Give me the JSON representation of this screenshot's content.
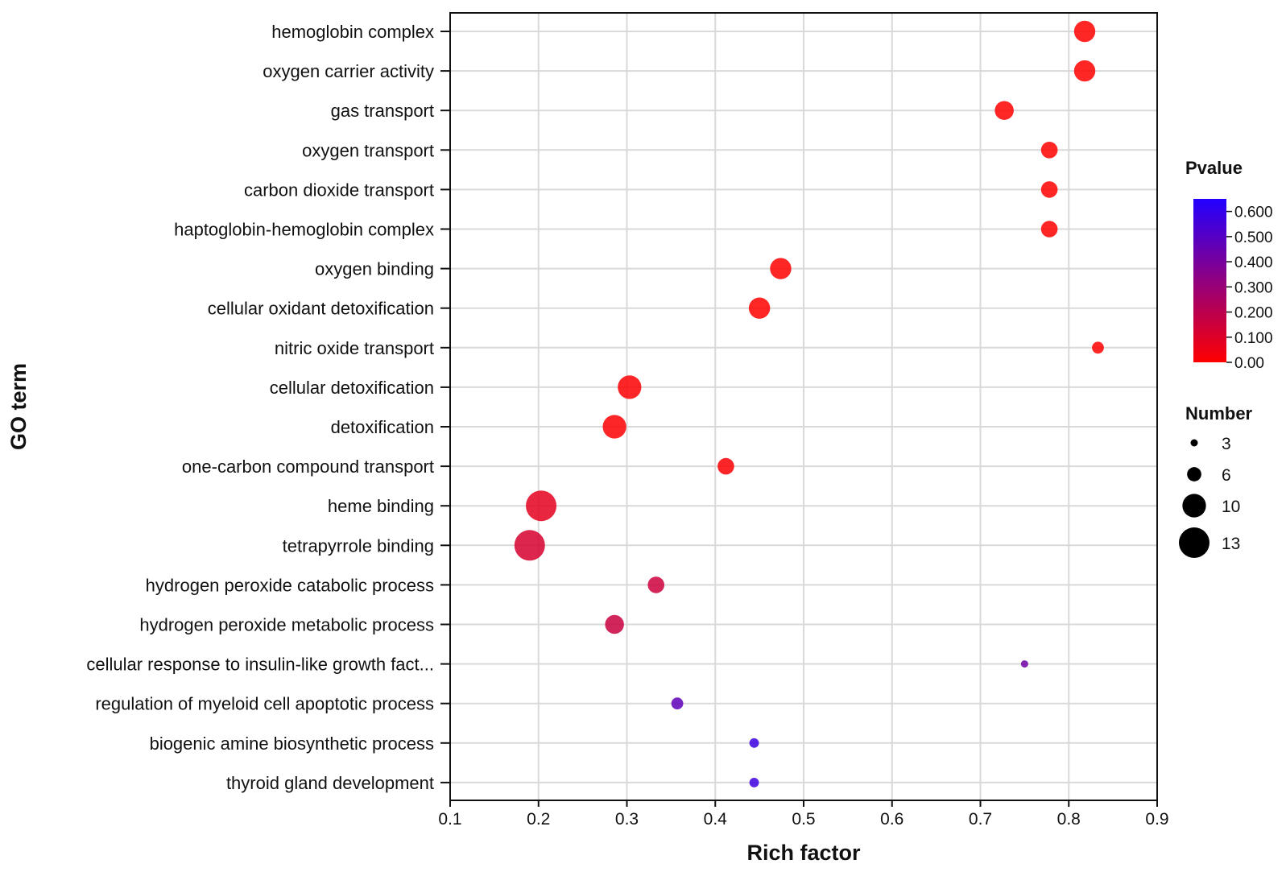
{
  "chart_data": {
    "type": "scatter",
    "subtype": "bubble",
    "xlabel": "Rich factor",
    "ylabel": "GO term",
    "xlim": [
      0.1,
      0.9
    ],
    "xticks": [
      "0.1",
      "0.2",
      "0.3",
      "0.4",
      "0.5",
      "0.6",
      "0.7",
      "0.8",
      "0.9"
    ],
    "grid": true,
    "terms": [
      {
        "label": "hemoglobin complex",
        "rich_factor": 0.818,
        "pvalue": 0.0,
        "number": 9
      },
      {
        "label": "oxygen carrier activity",
        "rich_factor": 0.818,
        "pvalue": 0.0,
        "number": 9
      },
      {
        "label": "gas transport",
        "rich_factor": 0.727,
        "pvalue": 0.0,
        "number": 8
      },
      {
        "label": "oxygen transport",
        "rich_factor": 0.778,
        "pvalue": 0.0,
        "number": 7
      },
      {
        "label": "carbon dioxide transport",
        "rich_factor": 0.778,
        "pvalue": 0.0,
        "number": 7
      },
      {
        "label": "haptoglobin-hemoglobin complex",
        "rich_factor": 0.778,
        "pvalue": 0.0,
        "number": 7
      },
      {
        "label": "oxygen binding",
        "rich_factor": 0.474,
        "pvalue": 0.0,
        "number": 9
      },
      {
        "label": "cellular oxidant detoxification",
        "rich_factor": 0.45,
        "pvalue": 0.0,
        "number": 9
      },
      {
        "label": "nitric oxide transport",
        "rich_factor": 0.833,
        "pvalue": 0.0,
        "number": 5
      },
      {
        "label": "cellular detoxification",
        "rich_factor": 0.303,
        "pvalue": 0.01,
        "number": 10
      },
      {
        "label": "detoxification",
        "rich_factor": 0.286,
        "pvalue": 0.01,
        "number": 10
      },
      {
        "label": "one-carbon compound transport",
        "rich_factor": 0.412,
        "pvalue": 0.01,
        "number": 7
      },
      {
        "label": "heme binding",
        "rich_factor": 0.203,
        "pvalue": 0.08,
        "number": 13
      },
      {
        "label": "tetrapyrrole binding",
        "rich_factor": 0.19,
        "pvalue": 0.12,
        "number": 13
      },
      {
        "label": "hydrogen peroxide catabolic process",
        "rich_factor": 0.333,
        "pvalue": 0.15,
        "number": 7
      },
      {
        "label": "hydrogen peroxide metabolic process",
        "rich_factor": 0.286,
        "pvalue": 0.16,
        "number": 8
      },
      {
        "label": "cellular response to insulin-like growth fact...",
        "rich_factor": 0.75,
        "pvalue": 0.42,
        "number": 3
      },
      {
        "label": "regulation of myeloid cell apoptotic process",
        "rich_factor": 0.357,
        "pvalue": 0.47,
        "number": 5
      },
      {
        "label": "biogenic amine biosynthetic process",
        "rich_factor": 0.444,
        "pvalue": 0.57,
        "number": 4
      },
      {
        "label": "thyroid gland development",
        "rich_factor": 0.444,
        "pvalue": 0.57,
        "number": 4
      }
    ],
    "color_legend": {
      "title": "Pvalue",
      "min": 0.0,
      "max": 0.65,
      "low_color": "#ff0000",
      "high_color": "#2200ff",
      "ticks": [
        {
          "value": 0.0,
          "label": "0.00"
        },
        {
          "value": 0.1,
          "label": "0.100"
        },
        {
          "value": 0.2,
          "label": "0.200"
        },
        {
          "value": 0.3,
          "label": "0.300"
        },
        {
          "value": 0.4,
          "label": "0.400"
        },
        {
          "value": 0.5,
          "label": "0.500"
        },
        {
          "value": 0.6,
          "label": "0.600"
        }
      ]
    },
    "size_legend": {
      "title": "Number",
      "items": [
        {
          "value": 3,
          "label": "3"
        },
        {
          "value": 6,
          "label": "6"
        },
        {
          "value": 10,
          "label": "10"
        },
        {
          "value": 13,
          "label": "13"
        }
      ]
    }
  }
}
